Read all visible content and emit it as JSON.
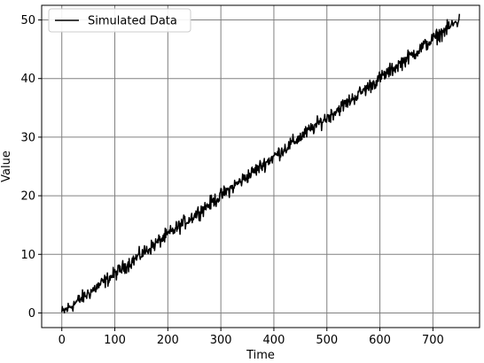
{
  "chart_data": {
    "type": "line",
    "title": "",
    "xlabel": "Time",
    "ylabel": "Value",
    "xlim": [
      -38,
      788
    ],
    "ylim": [
      -2.5,
      52.5
    ],
    "xticks": [
      0,
      100,
      200,
      300,
      400,
      500,
      600,
      700
    ],
    "yticks": [
      0,
      10,
      20,
      30,
      40,
      50
    ],
    "grid": true,
    "grid_color": "#808080",
    "line_color": "#000000",
    "legend_position": "upper-left",
    "series": [
      {
        "name": "Simulated Data",
        "x_start": 0,
        "x_end": 750,
        "x_step": 1,
        "trend_start": 0.0,
        "trend_slope": 0.0667,
        "noise_amplitude": 0.6
      }
    ]
  }
}
